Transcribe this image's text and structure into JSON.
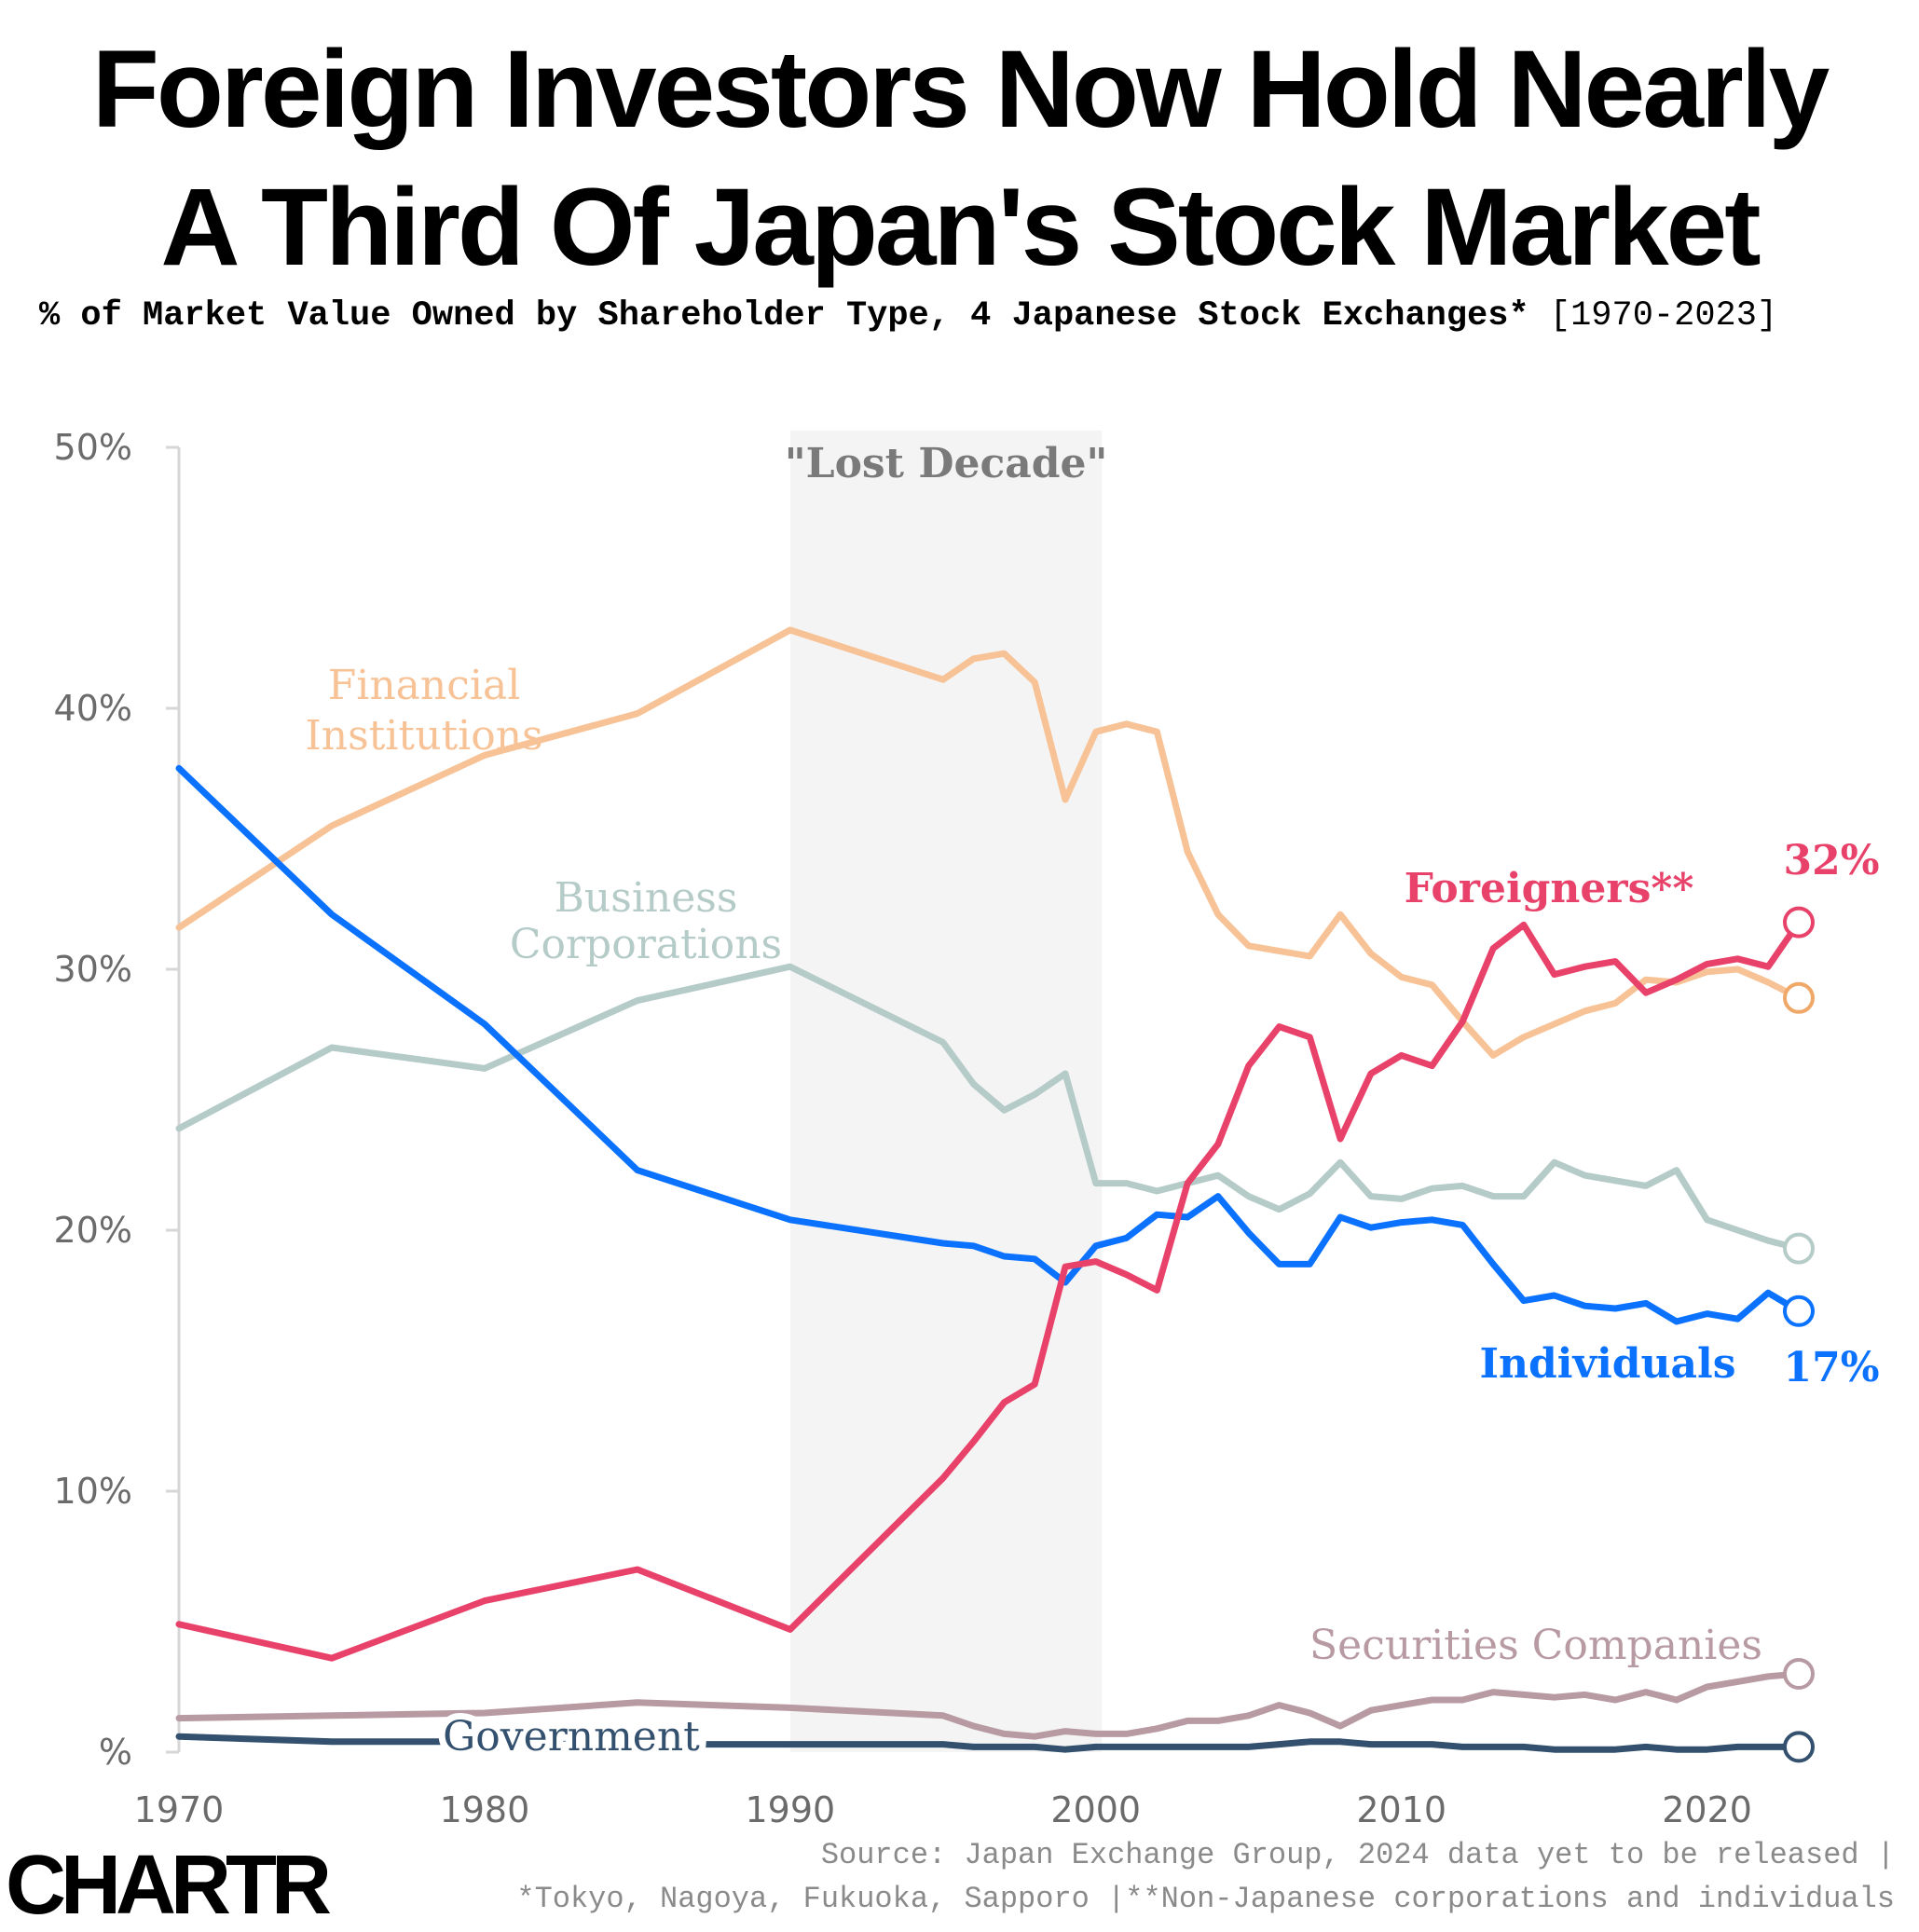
{
  "title_line1": "Foreign Investors Now Hold Nearly",
  "title_line2": "A Third Of Japan's Stock Market",
  "subtitle_main": "% of Market Value Owned by Shareholder Type, 4 Japanese Stock Exchanges*",
  "subtitle_range": "[1970-2023]",
  "source_line1": "Source: Japan Exchange Group, 2024 data yet to be released |",
  "source_line2": "*Tokyo, Nagoya, Fukuoka, Sapporo |**Non-Japanese corporations and individuals",
  "logo_text": "CHARTR",
  "chart_data": {
    "type": "line",
    "x_range": [
      1970,
      2023
    ],
    "ylim": [
      0,
      50
    ],
    "y_ticks": [
      0,
      10,
      20,
      30,
      40,
      50
    ],
    "y_tick_labels": [
      "%",
      "10%",
      "20%",
      "30%",
      "40%",
      "50%"
    ],
    "x_ticks": [
      1970,
      1980,
      1990,
      2000,
      2010,
      2020
    ],
    "x_tick_labels": [
      "1970",
      "1980",
      "1990",
      "2000",
      "2010",
      "2020"
    ],
    "shaded_region": {
      "start": 1990,
      "end": 2000.2,
      "label": "\"Lost Decade\"",
      "color": "#f4f4f4"
    },
    "series": [
      {
        "name": "Financial Institutions",
        "label_lines": [
          "Financial",
          "Institutions"
        ],
        "color": "#f7c295",
        "end_marker_color": "#f0a868",
        "points": [
          [
            1970,
            31.6
          ],
          [
            1975,
            35.5
          ],
          [
            1980,
            38.2
          ],
          [
            1985,
            39.8
          ],
          [
            1990,
            43.0
          ],
          [
            1995,
            41.1
          ],
          [
            1996,
            41.9
          ],
          [
            1997,
            42.1
          ],
          [
            1998,
            41.0
          ],
          [
            1999,
            36.5
          ],
          [
            2000,
            39.1
          ],
          [
            2001,
            39.4
          ],
          [
            2002,
            39.1
          ],
          [
            2003,
            34.5
          ],
          [
            2004,
            32.1
          ],
          [
            2005,
            30.9
          ],
          [
            2006,
            30.7
          ],
          [
            2007,
            30.5
          ],
          [
            2008,
            32.1
          ],
          [
            2009,
            30.6
          ],
          [
            2010,
            29.7
          ],
          [
            2011,
            29.4
          ],
          [
            2012,
            28.0
          ],
          [
            2013,
            26.7
          ],
          [
            2014,
            27.4
          ],
          [
            2015,
            27.9
          ],
          [
            2016,
            28.4
          ],
          [
            2017,
            28.7
          ],
          [
            2018,
            29.6
          ],
          [
            2019,
            29.5
          ],
          [
            2020,
            29.9
          ],
          [
            2021,
            30.0
          ],
          [
            2022,
            29.5
          ],
          [
            2023,
            28.9
          ]
        ]
      },
      {
        "name": "Business Corporations",
        "label_lines": [
          "Business",
          "Corporations"
        ],
        "color": "#b5cbc7",
        "end_marker_color": "#b5cbc7",
        "points": [
          [
            1970,
            23.9
          ],
          [
            1975,
            27.0
          ],
          [
            1980,
            26.2
          ],
          [
            1985,
            28.8
          ],
          [
            1990,
            30.1
          ],
          [
            1995,
            27.2
          ],
          [
            1996,
            25.6
          ],
          [
            1997,
            24.6
          ],
          [
            1998,
            25.2
          ],
          [
            1999,
            26.0
          ],
          [
            2000,
            21.8
          ],
          [
            2001,
            21.8
          ],
          [
            2002,
            21.5
          ],
          [
            2003,
            21.8
          ],
          [
            2004,
            22.1
          ],
          [
            2005,
            21.3
          ],
          [
            2006,
            20.8
          ],
          [
            2007,
            21.4
          ],
          [
            2008,
            22.6
          ],
          [
            2009,
            21.3
          ],
          [
            2010,
            21.2
          ],
          [
            2011,
            21.6
          ],
          [
            2012,
            21.7
          ],
          [
            2013,
            21.3
          ],
          [
            2014,
            21.3
          ],
          [
            2015,
            22.6
          ],
          [
            2016,
            22.1
          ],
          [
            2017,
            21.9
          ],
          [
            2018,
            21.7
          ],
          [
            2019,
            22.3
          ],
          [
            2020,
            20.4
          ],
          [
            2021,
            20.0
          ],
          [
            2022,
            19.6
          ],
          [
            2023,
            19.3
          ]
        ]
      },
      {
        "name": "Individuals",
        "label_lines": [
          "Individuals"
        ],
        "color": "#0a72ff",
        "end_value_label": "17%",
        "end_marker_color": "#0a72ff",
        "points": [
          [
            1970,
            37.7
          ],
          [
            1975,
            32.1
          ],
          [
            1980,
            27.9
          ],
          [
            1985,
            22.3
          ],
          [
            1990,
            20.4
          ],
          [
            1995,
            19.5
          ],
          [
            1996,
            19.4
          ],
          [
            1997,
            19.0
          ],
          [
            1998,
            18.9
          ],
          [
            1999,
            18.0
          ],
          [
            2000,
            19.4
          ],
          [
            2001,
            19.7
          ],
          [
            2002,
            20.6
          ],
          [
            2003,
            20.5
          ],
          [
            2004,
            21.3
          ],
          [
            2005,
            19.9
          ],
          [
            2006,
            18.7
          ],
          [
            2007,
            18.7
          ],
          [
            2008,
            20.5
          ],
          [
            2009,
            20.1
          ],
          [
            2010,
            20.3
          ],
          [
            2011,
            20.4
          ],
          [
            2012,
            20.2
          ],
          [
            2013,
            18.7
          ],
          [
            2014,
            17.3
          ],
          [
            2015,
            17.5
          ],
          [
            2016,
            17.1
          ],
          [
            2017,
            17.0
          ],
          [
            2018,
            17.2
          ],
          [
            2019,
            16.5
          ],
          [
            2020,
            16.8
          ],
          [
            2021,
            16.6
          ],
          [
            2022,
            17.6
          ],
          [
            2023,
            16.9
          ]
        ]
      },
      {
        "name": "Foreigners**",
        "label_lines": [
          "Foreigners**"
        ],
        "color": "#e8426a",
        "end_value_label": "32%",
        "end_marker_color": "#e8426a",
        "points": [
          [
            1970,
            4.9
          ],
          [
            1975,
            3.6
          ],
          [
            1980,
            5.8
          ],
          [
            1985,
            7.0
          ],
          [
            1990,
            4.7
          ],
          [
            1995,
            10.5
          ],
          [
            1996,
            11.9
          ],
          [
            1997,
            13.4
          ],
          [
            1998,
            14.1
          ],
          [
            1999,
            18.6
          ],
          [
            2000,
            18.8
          ],
          [
            2001,
            18.3
          ],
          [
            2002,
            17.7
          ],
          [
            2003,
            21.8
          ],
          [
            2004,
            23.3
          ],
          [
            2005,
            26.3
          ],
          [
            2006,
            27.8
          ],
          [
            2007,
            27.4
          ],
          [
            2008,
            23.5
          ],
          [
            2009,
            26.0
          ],
          [
            2010,
            26.7
          ],
          [
            2011,
            26.3
          ],
          [
            2012,
            28.0
          ],
          [
            2013,
            30.8
          ],
          [
            2014,
            31.7
          ],
          [
            2015,
            29.8
          ],
          [
            2016,
            30.1
          ],
          [
            2017,
            30.3
          ],
          [
            2018,
            29.1
          ],
          [
            2019,
            29.6
          ],
          [
            2020,
            30.2
          ],
          [
            2021,
            30.4
          ],
          [
            2022,
            30.1
          ],
          [
            2023,
            31.8
          ]
        ]
      },
      {
        "name": "Securities Companies",
        "label_lines": [
          "Securities Companies"
        ],
        "color": "#b89aa3",
        "end_marker_color": "#b89aa3",
        "points": [
          [
            1970,
            1.3
          ],
          [
            1975,
            1.4
          ],
          [
            1980,
            1.5
          ],
          [
            1985,
            1.9
          ],
          [
            1990,
            1.7
          ],
          [
            1995,
            1.4
          ],
          [
            1996,
            1.0
          ],
          [
            1997,
            0.7
          ],
          [
            1998,
            0.6
          ],
          [
            1999,
            0.8
          ],
          [
            2000,
            0.7
          ],
          [
            2001,
            0.7
          ],
          [
            2002,
            0.9
          ],
          [
            2003,
            1.2
          ],
          [
            2004,
            1.2
          ],
          [
            2005,
            1.4
          ],
          [
            2006,
            1.8
          ],
          [
            2007,
            1.5
          ],
          [
            2008,
            1.0
          ],
          [
            2009,
            1.6
          ],
          [
            2010,
            1.8
          ],
          [
            2011,
            2.0
          ],
          [
            2012,
            2.0
          ],
          [
            2013,
            2.3
          ],
          [
            2014,
            2.2
          ],
          [
            2015,
            2.1
          ],
          [
            2016,
            2.2
          ],
          [
            2017,
            2.0
          ],
          [
            2018,
            2.3
          ],
          [
            2019,
            2.0
          ],
          [
            2020,
            2.5
          ],
          [
            2021,
            2.7
          ],
          [
            2022,
            2.9
          ],
          [
            2023,
            3.0
          ]
        ]
      },
      {
        "name": "Government",
        "label_lines": [
          "Government"
        ],
        "color": "#33506e",
        "end_marker_color": "#33506e",
        "points": [
          [
            1970,
            0.6
          ],
          [
            1975,
            0.4
          ],
          [
            1980,
            0.4
          ],
          [
            1985,
            0.3
          ],
          [
            1990,
            0.3
          ],
          [
            1995,
            0.3
          ],
          [
            1996,
            0.2
          ],
          [
            1997,
            0.2
          ],
          [
            1998,
            0.2
          ],
          [
            1999,
            0.1
          ],
          [
            2000,
            0.2
          ],
          [
            2001,
            0.2
          ],
          [
            2002,
            0.2
          ],
          [
            2003,
            0.2
          ],
          [
            2004,
            0.2
          ],
          [
            2005,
            0.2
          ],
          [
            2006,
            0.3
          ],
          [
            2007,
            0.4
          ],
          [
            2008,
            0.4
          ],
          [
            2009,
            0.3
          ],
          [
            2010,
            0.3
          ],
          [
            2011,
            0.3
          ],
          [
            2012,
            0.2
          ],
          [
            2013,
            0.2
          ],
          [
            2014,
            0.2
          ],
          [
            2015,
            0.1
          ],
          [
            2016,
            0.1
          ],
          [
            2017,
            0.1
          ],
          [
            2018,
            0.2
          ],
          [
            2019,
            0.1
          ],
          [
            2020,
            0.1
          ],
          [
            2021,
            0.2
          ],
          [
            2022,
            0.2
          ],
          [
            2023,
            0.2
          ]
        ]
      }
    ]
  }
}
